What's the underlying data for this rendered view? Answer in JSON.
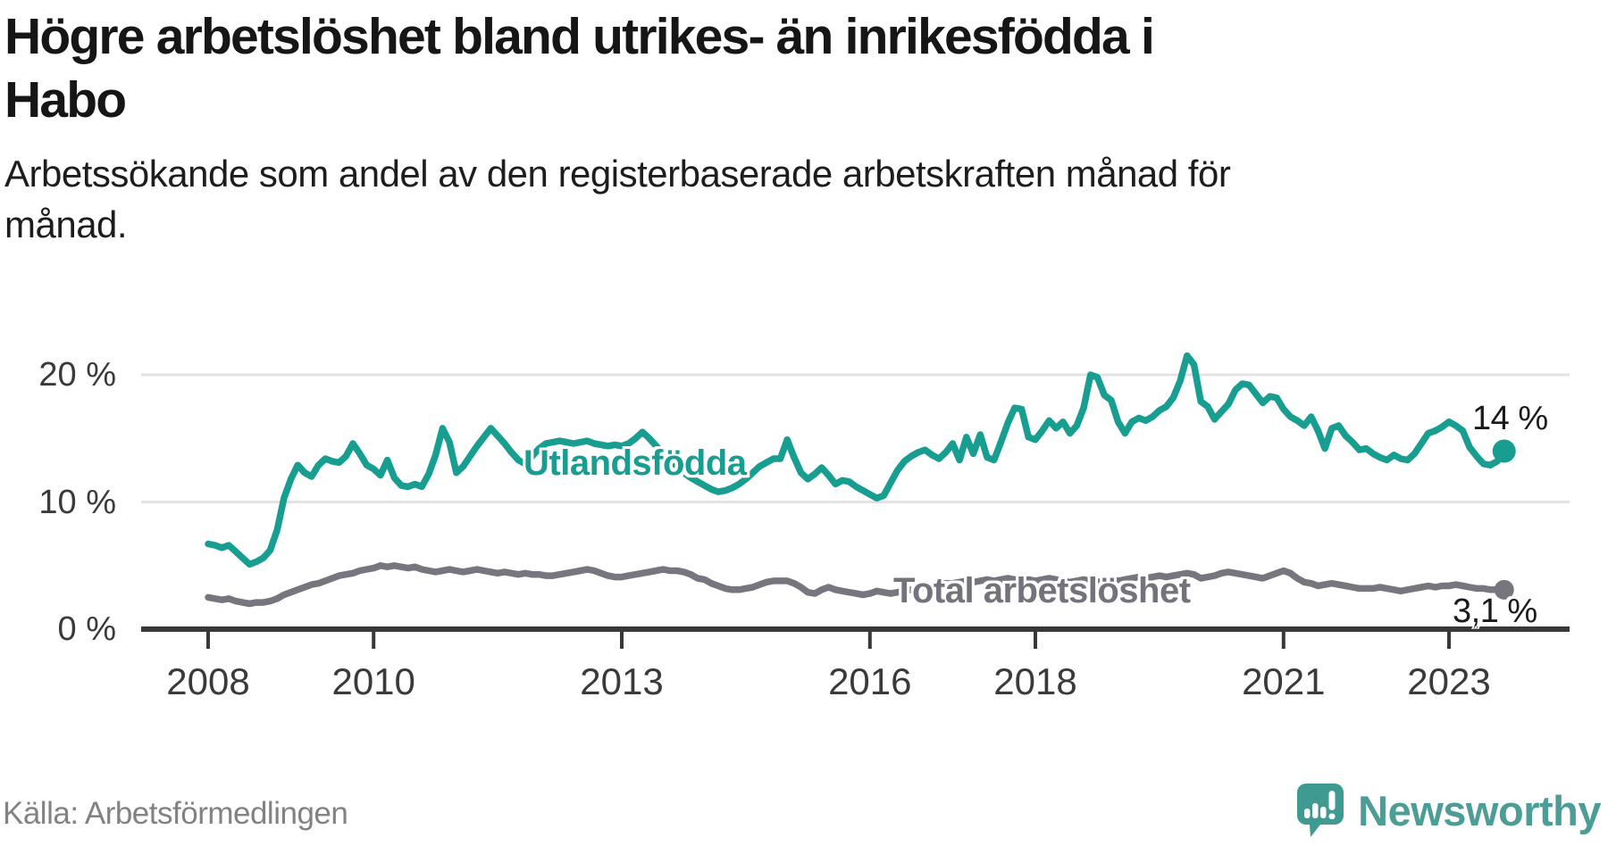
{
  "header": {
    "title": "Högre arbetslöshet bland utrikes- än inrikesfödda i Habo",
    "title_lines": [
      "Högre arbetslöshet bland utrikes- än inrikesfödda i",
      "Habo"
    ],
    "subtitle": "Arbetssökande som andel av den registerbaserade arbetskraften månad för månad.",
    "subtitle_lines": [
      "Arbetssökande som andel av den registerbaserade arbetskraften månad för",
      "månad."
    ]
  },
  "chart_data": {
    "type": "line",
    "title": "Högre arbetslöshet bland utrikes- än inrikesfödda i Habo",
    "subtitle": "Arbetssökande som andel av den registerbaserade arbetskraften månad för månad.",
    "unit": "%",
    "frequency": "monthly",
    "x_start": "2008-01",
    "x_end": "2023-09",
    "xlim": [
      2008,
      2023.75
    ],
    "ylim": [
      0,
      22.5
    ],
    "grid": "horizontal",
    "x_ticks": [
      2008,
      2010,
      2013,
      2016,
      2018,
      2021,
      2023
    ],
    "y_ticks": [
      {
        "value": 0,
        "label": "0 %"
      },
      {
        "value": 10,
        "label": "10 %"
      },
      {
        "value": 20,
        "label": "20 %"
      }
    ],
    "series": [
      {
        "name": "Utlandsfödda",
        "color": "#179e90",
        "end_label": "14 %",
        "end_value": 14,
        "values": [
          6.7,
          6.6,
          6.4,
          6.6,
          6.1,
          5.6,
          5.1,
          5.3,
          5.6,
          6.2,
          7.8,
          10.3,
          11.8,
          12.9,
          12.3,
          12.0,
          12.9,
          13.4,
          13.2,
          13.1,
          13.6,
          14.6,
          13.8,
          12.9,
          12.6,
          12.1,
          13.3,
          11.9,
          11.3,
          11.2,
          11.4,
          11.2,
          12.2,
          13.7,
          15.8,
          14.7,
          12.3,
          12.8,
          13.6,
          14.4,
          15.1,
          15.8,
          15.2,
          14.6,
          13.9,
          13.3,
          13.0,
          13.6,
          14.2,
          14.6,
          14.7,
          14.8,
          14.7,
          14.6,
          14.7,
          14.8,
          14.6,
          14.5,
          14.4,
          14.5,
          14.4,
          14.6,
          15.0,
          15.5,
          15.0,
          14.4,
          13.8,
          13.2,
          12.7,
          12.3,
          11.9,
          11.6,
          11.3,
          11.0,
          10.8,
          10.9,
          11.1,
          11.4,
          11.8,
          12.3,
          12.8,
          13.1,
          13.4,
          13.4,
          14.9,
          13.5,
          12.3,
          11.8,
          12.2,
          12.7,
          12.1,
          11.4,
          11.7,
          11.6,
          11.2,
          10.9,
          10.6,
          10.3,
          10.5,
          11.5,
          12.5,
          13.2,
          13.6,
          13.9,
          14.1,
          13.7,
          13.4,
          13.9,
          14.6,
          13.3,
          15.1,
          13.8,
          15.3,
          13.5,
          13.3,
          14.7,
          16.2,
          17.4,
          17.3,
          15.1,
          14.9,
          15.6,
          16.4,
          15.8,
          16.3,
          15.4,
          16.0,
          17.4,
          20.0,
          19.8,
          18.4,
          18.0,
          16.3,
          15.4,
          16.3,
          16.6,
          16.4,
          16.7,
          17.2,
          17.5,
          18.2,
          19.5,
          21.5,
          20.8,
          17.9,
          17.5,
          16.5,
          17.1,
          17.7,
          18.8,
          19.3,
          19.2,
          18.5,
          17.8,
          18.3,
          18.2,
          17.3,
          16.7,
          16.4,
          16.0,
          16.7,
          15.6,
          14.2,
          15.8,
          16.0,
          15.2,
          14.7,
          14.1,
          14.2,
          13.8,
          13.5,
          13.3,
          13.7,
          13.4,
          13.3,
          13.8,
          14.6,
          15.4,
          15.6,
          15.9,
          16.3,
          16.0,
          15.6,
          14.3,
          13.6,
          13.0,
          12.9,
          13.2,
          14.0
        ]
      },
      {
        "name": "Total arbetslöshet",
        "color": "#77767e",
        "end_label": "3,1 %",
        "end_value": 3.1,
        "values": [
          2.5,
          2.4,
          2.3,
          2.4,
          2.2,
          2.1,
          2.0,
          2.1,
          2.1,
          2.2,
          2.4,
          2.7,
          2.9,
          3.1,
          3.3,
          3.5,
          3.6,
          3.8,
          4.0,
          4.2,
          4.3,
          4.4,
          4.6,
          4.7,
          4.8,
          5.0,
          4.9,
          5.0,
          4.9,
          4.8,
          4.9,
          4.7,
          4.6,
          4.5,
          4.6,
          4.7,
          4.6,
          4.5,
          4.6,
          4.7,
          4.6,
          4.5,
          4.4,
          4.5,
          4.4,
          4.3,
          4.4,
          4.3,
          4.3,
          4.2,
          4.2,
          4.3,
          4.4,
          4.5,
          4.6,
          4.7,
          4.6,
          4.4,
          4.2,
          4.1,
          4.1,
          4.2,
          4.3,
          4.4,
          4.5,
          4.6,
          4.7,
          4.6,
          4.6,
          4.5,
          4.3,
          4.0,
          3.9,
          3.6,
          3.4,
          3.2,
          3.1,
          3.1,
          3.2,
          3.3,
          3.5,
          3.7,
          3.8,
          3.8,
          3.8,
          3.6,
          3.3,
          2.9,
          2.8,
          3.1,
          3.3,
          3.1,
          3.0,
          2.9,
          2.8,
          2.7,
          2.8,
          3.0,
          2.9,
          2.8,
          2.9,
          3.0,
          3.1,
          3.2,
          3.3,
          3.4,
          3.5,
          3.6,
          3.6,
          3.7,
          3.8,
          3.7,
          3.8,
          3.9,
          3.8,
          3.9,
          4.0,
          3.9,
          3.8,
          3.9,
          3.8,
          3.9,
          4.0,
          3.9,
          3.8,
          3.7,
          3.8,
          3.9,
          3.8,
          3.7,
          3.8,
          3.9,
          3.8,
          3.9,
          4.0,
          4.1,
          4.0,
          4.1,
          4.2,
          4.1,
          4.2,
          4.3,
          4.4,
          4.3,
          4.0,
          4.1,
          4.2,
          4.4,
          4.5,
          4.4,
          4.3,
          4.2,
          4.1,
          4.0,
          4.2,
          4.4,
          4.6,
          4.4,
          4.0,
          3.7,
          3.6,
          3.4,
          3.5,
          3.6,
          3.5,
          3.4,
          3.3,
          3.2,
          3.2,
          3.2,
          3.3,
          3.2,
          3.1,
          3.0,
          3.1,
          3.2,
          3.3,
          3.4,
          3.3,
          3.4,
          3.4,
          3.5,
          3.4,
          3.3,
          3.2,
          3.2,
          3.1,
          3.1,
          3.1
        ]
      }
    ]
  },
  "footer": {
    "source": "Källa: Arbetsförmedlingen",
    "brand": "Newsworthy"
  },
  "colors": {
    "foreign_line": "#179e90",
    "total_line": "#77767e",
    "axis": "#383838",
    "gridline": "#e3e3e3",
    "tick_text": "#3a3a3a",
    "logo_teal": "#3f9a92",
    "wordmark_teal": "#4c9d96"
  }
}
